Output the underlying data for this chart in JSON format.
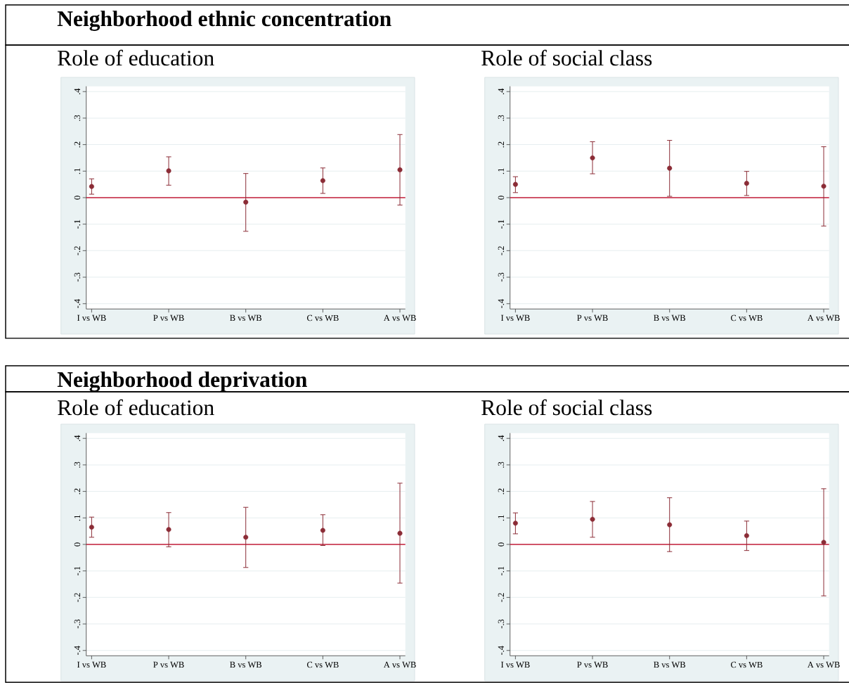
{
  "chart_data": [
    {
      "type": "scatter",
      "title": "Role of education",
      "annotations": [
        "Neighborhood ethnic concentration"
      ],
      "categories": [
        "I vs WB",
        "P vs WB",
        "B vs WB",
        "C vs WB",
        "A vs WB"
      ],
      "values": [
        0.042,
        0.101,
        -0.017,
        0.064,
        0.105
      ],
      "errors": [
        [
          0.013,
          0.071
        ],
        [
          0.047,
          0.154
        ],
        [
          -0.127,
          0.091
        ],
        [
          0.016,
          0.112
        ],
        [
          -0.028,
          0.238
        ]
      ],
      "color": "#8b2c36",
      "marker": "circle",
      "ylim": [
        -0.42,
        0.42
      ],
      "yticks": [
        {
          "value": -0.4,
          "label": "-.4"
        },
        {
          "value": -0.3,
          "label": "-.3"
        },
        {
          "value": -0.2,
          "label": "-.2"
        },
        {
          "value": -0.1,
          "label": "-.1"
        },
        0,
        {
          "value": 0.1,
          "label": ".1"
        },
        {
          "value": 0.2,
          "label": ".2"
        },
        {
          "value": 0.3,
          "label": ".3"
        },
        {
          "value": 0.4,
          "label": ".4"
        }
      ],
      "grid": "y",
      "ref_lines": [
        {
          "axis": "y",
          "value": 0,
          "color": "#c41e3a"
        }
      ]
    },
    {
      "type": "scatter",
      "title": "Role of social class",
      "categories": [
        "I vs WB",
        "P vs WB",
        "B vs WB",
        "C vs WB",
        "A vs WB"
      ],
      "values": [
        0.05,
        0.15,
        0.111,
        0.054,
        0.043
      ],
      "errors": [
        [
          0.019,
          0.079
        ],
        [
          0.09,
          0.211
        ],
        [
          0.005,
          0.216
        ],
        [
          0.008,
          0.099
        ],
        [
          -0.107,
          0.192
        ]
      ],
      "color": "#8b2c36",
      "marker": "circle",
      "ylim": [
        -0.42,
        0.42
      ],
      "yticks": [
        {
          "value": -0.4,
          "label": "-.4"
        },
        {
          "value": -0.3,
          "label": "-.3"
        },
        {
          "value": -0.2,
          "label": "-.2"
        },
        {
          "value": -0.1,
          "label": "-.1"
        },
        0,
        {
          "value": 0.1,
          "label": ".1"
        },
        {
          "value": 0.2,
          "label": ".2"
        },
        {
          "value": 0.3,
          "label": ".3"
        },
        {
          "value": 0.4,
          "label": ".4"
        }
      ],
      "grid": "y",
      "ref_lines": [
        {
          "axis": "y",
          "value": 0,
          "color": "#c41e3a"
        }
      ]
    },
    {
      "type": "scatter",
      "title": "Role of education",
      "annotations": [
        "Neighborhood deprivation"
      ],
      "categories": [
        "I vs WB",
        "P vs WB",
        "B vs WB",
        "C vs WB",
        "A vs WB"
      ],
      "values": [
        0.065,
        0.056,
        0.027,
        0.053,
        0.042
      ],
      "errors": [
        [
          0.027,
          0.103
        ],
        [
          -0.009,
          0.12
        ],
        [
          -0.087,
          0.14
        ],
        [
          -0.004,
          0.112
        ],
        [
          -0.146,
          0.231
        ]
      ],
      "color": "#8b2c36",
      "marker": "circle",
      "ylim": [
        -0.42,
        0.42
      ],
      "yticks": [
        {
          "value": -0.4,
          "label": "-.4"
        },
        {
          "value": -0.3,
          "label": "-.3"
        },
        {
          "value": -0.2,
          "label": "-.2"
        },
        {
          "value": -0.1,
          "label": "-.1"
        },
        0,
        {
          "value": 0.1,
          "label": ".1"
        },
        {
          "value": 0.2,
          "label": ".2"
        },
        {
          "value": 0.3,
          "label": ".3"
        },
        {
          "value": 0.4,
          "label": ".4"
        }
      ],
      "grid": "y",
      "ref_lines": [
        {
          "axis": "y",
          "value": 0,
          "color": "#c41e3a"
        }
      ]
    },
    {
      "type": "scatter",
      "title": "Role of social class",
      "categories": [
        "I vs WB",
        "P vs WB",
        "B vs WB",
        "C vs WB",
        "A vs WB"
      ],
      "values": [
        0.08,
        0.095,
        0.074,
        0.033,
        0.008
      ],
      "errors": [
        [
          0.04,
          0.119
        ],
        [
          0.027,
          0.162
        ],
        [
          -0.027,
          0.176
        ],
        [
          -0.023,
          0.088
        ],
        [
          -0.194,
          0.21
        ]
      ],
      "color": "#8b2c36",
      "marker": "circle",
      "ylim": [
        -0.42,
        0.42
      ],
      "yticks": [
        {
          "value": -0.4,
          "label": "-.4"
        },
        {
          "value": -0.3,
          "label": "-.3"
        },
        {
          "value": -0.2,
          "label": "-.2"
        },
        {
          "value": -0.1,
          "label": "-.1"
        },
        0,
        {
          "value": 0.1,
          "label": ".1"
        },
        {
          "value": 0.2,
          "label": ".2"
        },
        {
          "value": 0.3,
          "label": ".3"
        },
        {
          "value": 0.4,
          "label": ".4"
        }
      ],
      "grid": "y",
      "ref_lines": [
        {
          "axis": "y",
          "value": 0,
          "color": "#c41e3a"
        }
      ]
    }
  ]
}
